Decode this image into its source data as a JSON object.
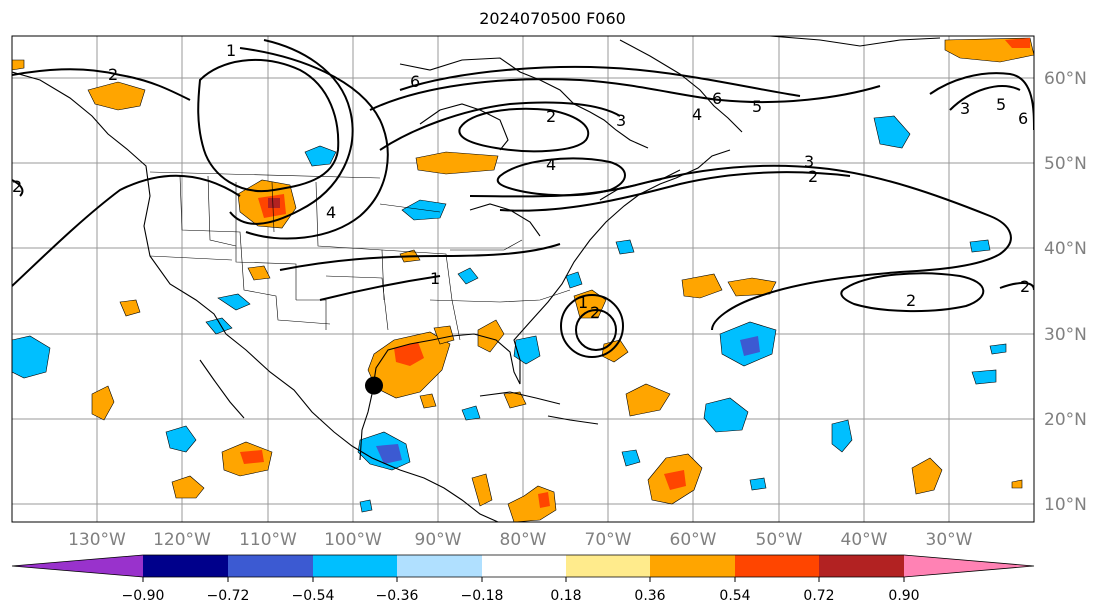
{
  "title": "2024070500 F060",
  "map": {
    "lon_labels": [
      "130°W",
      "120°W",
      "110°W",
      "100°W",
      "90°W",
      "80°W",
      "70°W",
      "60°W",
      "50°W",
      "40°W",
      "30°W"
    ],
    "lat_labels": [
      "60°N",
      "50°N",
      "40°N",
      "30°N",
      "20°N",
      "10°N"
    ],
    "storm_marker": {
      "lon": -97.5,
      "lat": 24.0
    },
    "contour_labels": [
      "1",
      "2",
      "6",
      "6",
      "5",
      "2",
      "3",
      "4",
      "3",
      "2",
      "4",
      "1",
      "1",
      "2",
      "2",
      "3",
      "4",
      "5",
      "6",
      "2",
      "2"
    ]
  },
  "colorbar": {
    "ticks": [
      "−0.90",
      "−0.72",
      "−0.54",
      "−0.36",
      "−0.18",
      "0.18",
      "0.36",
      "0.54",
      "0.72",
      "0.90"
    ],
    "colors": [
      "#9932cc",
      "#00008b",
      "#3c5ad2",
      "#00bfff",
      "#b0e0ff",
      "#ffffff",
      "#ffeb8c",
      "#ffa500",
      "#ff4500",
      "#b22222",
      "#ff82b4"
    ]
  }
}
